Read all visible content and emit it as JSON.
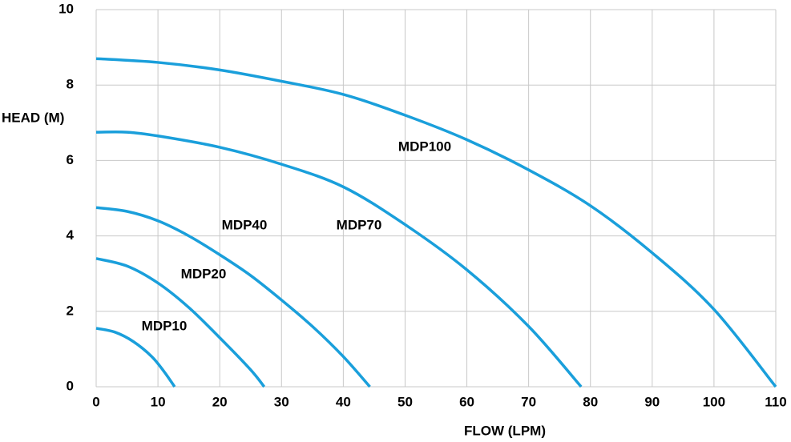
{
  "chart_data": {
    "type": "line",
    "xlabel": "FLOW (LPM)",
    "ylabel": "HEAD (M)",
    "xlim": [
      0,
      110
    ],
    "xticks": [
      0,
      10,
      20,
      30,
      40,
      50,
      60,
      70,
      80,
      90,
      100,
      110
    ],
    "ylim": [
      0,
      10
    ],
    "yticks": [
      0,
      2,
      4,
      6,
      8,
      10
    ],
    "grid": true,
    "series": [
      {
        "name": "MDP10",
        "color": "#1a9fdb",
        "x": [
          0,
          3,
          6,
          9,
          11,
          12.7
        ],
        "values": [
          1.55,
          1.45,
          1.2,
          0.8,
          0.4,
          0
        ]
      },
      {
        "name": "MDP20",
        "color": "#1a9fdb",
        "x": [
          0,
          5,
          10,
          15,
          20,
          25,
          27.2
        ],
        "values": [
          3.4,
          3.2,
          2.75,
          2.1,
          1.3,
          0.45,
          0
        ]
      },
      {
        "name": "MDP40",
        "color": "#1a9fdb",
        "x": [
          0,
          5,
          10,
          15,
          20,
          25,
          30,
          35,
          40,
          44.3
        ],
        "values": [
          4.75,
          4.65,
          4.4,
          4.0,
          3.5,
          2.95,
          2.3,
          1.6,
          0.8,
          0
        ]
      },
      {
        "name": "MDP70",
        "color": "#1a9fdb",
        "x": [
          0,
          5,
          10,
          20,
          30,
          40,
          50,
          60,
          70,
          78.5
        ],
        "values": [
          6.75,
          6.75,
          6.65,
          6.35,
          5.9,
          5.3,
          4.3,
          3.1,
          1.6,
          0
        ]
      },
      {
        "name": "MDP100",
        "color": "#1a9fdb",
        "x": [
          0,
          10,
          20,
          30,
          40,
          50,
          60,
          70,
          80,
          90,
          100,
          110
        ],
        "values": [
          8.7,
          8.6,
          8.4,
          8.1,
          7.75,
          7.2,
          6.55,
          5.75,
          4.8,
          3.55,
          2.05,
          0
        ]
      }
    ]
  }
}
